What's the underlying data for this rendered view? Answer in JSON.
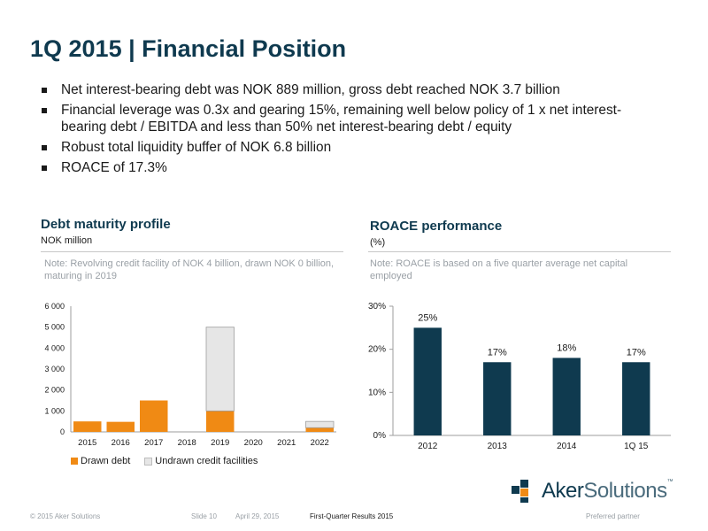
{
  "slide": {
    "title": "1Q 2015 | Financial Position",
    "bullets": [
      "Net interest-bearing debt was NOK 889 million, gross debt reached NOK 3.7 billion",
      "Financial leverage was 0.3x and gearing 15%, remaining well below policy of 1 x net interest-bearing debt / EBITDA and less than 50% net interest-bearing debt / equity",
      "Robust total liquidity buffer of NOK 6.8 billion",
      "ROACE of 17.3%"
    ]
  },
  "debt_panel": {
    "title": "Debt maturity profile",
    "unit": "NOK million",
    "note": "Note: Revolving credit facility of NOK 4 billion, drawn NOK  0 billion, maturing in 2019",
    "legend": [
      "Drawn debt",
      "Undrawn credit facilities"
    ]
  },
  "roace_panel": {
    "title": "ROACE performance",
    "unit": "(%)",
    "note": "Note: ROACE is based on a five quarter average net capital employed"
  },
  "colors": {
    "title": "#0f3a4f",
    "drawn": "#f08a14",
    "undrawn": "#e6e6e6",
    "roace_bar": "#0f3a4f"
  },
  "chart_data": [
    {
      "type": "bar",
      "stacked": true,
      "title": "Debt maturity profile",
      "ylabel": "NOK million",
      "categories": [
        "2015",
        "2016",
        "2017",
        "2018",
        "2019",
        "2020",
        "2021",
        "2022"
      ],
      "yticks": [
        "0",
        "1 000",
        "2 000",
        "3 000",
        "4 000",
        "5 000",
        "6 000"
      ],
      "ylim": [
        0,
        6000
      ],
      "series": [
        {
          "name": "Drawn debt",
          "values": [
            500,
            480,
            1500,
            0,
            1000,
            0,
            0,
            200
          ]
        },
        {
          "name": "Undrawn credit facilities",
          "values": [
            0,
            0,
            0,
            0,
            4000,
            0,
            0,
            300
          ]
        }
      ],
      "legend": "bottom-left"
    },
    {
      "type": "bar",
      "title": "ROACE performance",
      "ylabel": "(%)",
      "categories": [
        "2012",
        "2013",
        "2014",
        "1Q 15"
      ],
      "values": [
        25,
        17,
        18,
        17
      ],
      "labels": [
        "25%",
        "17%",
        "18%",
        "17%"
      ],
      "yticks": [
        "0%",
        "10%",
        "20%",
        "30%"
      ],
      "ylim": [
        0,
        30
      ]
    }
  ],
  "logo": {
    "aker": "Aker",
    "solutions": "Solutions",
    "tm": "™"
  },
  "footer": {
    "copyright": "© 2015 Aker Solutions",
    "slide": "Slide 10",
    "date": "April 29, 2015",
    "report": "First-Quarter Results 2015",
    "partner": "Preferred partner"
  }
}
